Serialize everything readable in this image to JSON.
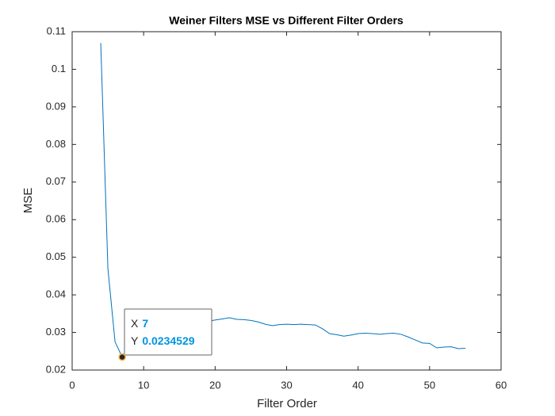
{
  "chart_data": {
    "type": "line",
    "title": "Weiner Filters MSE vs Different Filter Orders",
    "xlabel": "Filter Order",
    "ylabel": "MSE",
    "x": [
      4,
      5,
      6,
      7,
      8,
      9,
      10,
      11,
      12,
      13,
      14,
      15,
      16,
      17,
      18,
      19,
      20,
      21,
      22,
      23,
      24,
      25,
      26,
      27,
      28,
      29,
      30,
      31,
      32,
      33,
      34,
      35,
      36,
      37,
      38,
      39,
      40,
      41,
      42,
      43,
      44,
      45,
      46,
      47,
      48,
      49,
      50,
      51,
      52,
      53,
      54,
      55
    ],
    "values": [
      0.107,
      0.047,
      0.0275,
      0.0234529,
      0.026,
      0.028,
      0.029,
      0.03,
      0.031,
      0.0315,
      0.032,
      0.0325,
      0.0325,
      0.033,
      0.033,
      0.033,
      0.0333,
      0.0336,
      0.0339,
      0.0335,
      0.0334,
      0.0332,
      0.0328,
      0.0322,
      0.0318,
      0.0321,
      0.0322,
      0.0321,
      0.0322,
      0.0321,
      0.032,
      0.031,
      0.0297,
      0.0294,
      0.029,
      0.0293,
      0.0297,
      0.0298,
      0.0297,
      0.0295,
      0.0297,
      0.0298,
      0.0295,
      0.0288,
      0.028,
      0.0272,
      0.0271,
      0.0259,
      0.0261,
      0.0262,
      0.0257,
      0.0258
    ],
    "color": "#0072bd",
    "xlim": [
      0,
      60
    ],
    "xticks": [
      0,
      10,
      20,
      30,
      40,
      50,
      60
    ],
    "ylim": [
      0.02,
      0.11
    ],
    "yticks": [
      0.02,
      0.03,
      0.04,
      0.05,
      0.06,
      0.07,
      0.08,
      0.09,
      0.1,
      0.11
    ],
    "datatip": {
      "x_label": "X",
      "x": 7,
      "y_label": "Y",
      "y": 0.0234529
    }
  }
}
